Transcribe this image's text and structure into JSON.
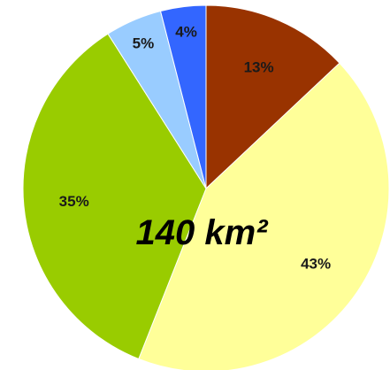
{
  "chart_data": {
    "type": "pie",
    "start": "12 o'clock",
    "direction": "clockwise",
    "slices": [
      {
        "label": "13%",
        "value": 13,
        "color": "#993300"
      },
      {
        "label": "43%",
        "value": 43,
        "color": "#FFFF99"
      },
      {
        "label": "35%",
        "value": 35,
        "color": "#99CC00"
      },
      {
        "label": "5%",
        "value": 5,
        "color": "#99CCFF"
      },
      {
        "label": "4%",
        "value": 4,
        "color": "#3366FF"
      }
    ],
    "center_label": "140 km²"
  }
}
